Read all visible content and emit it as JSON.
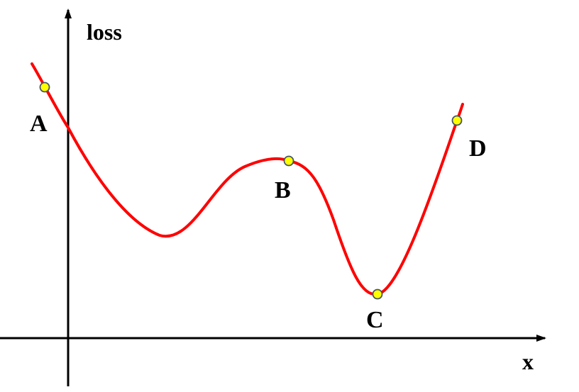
{
  "axes": {
    "y_label": "loss",
    "x_label": "x"
  },
  "points": [
    {
      "id": "A",
      "label": "A"
    },
    {
      "id": "B",
      "label": "B"
    },
    {
      "id": "C",
      "label": "C"
    },
    {
      "id": "D",
      "label": "D"
    }
  ],
  "colors": {
    "curve": "#ff0000",
    "point_fill": "#ffff00",
    "point_stroke": "#44546a",
    "axis": "#000000"
  }
}
